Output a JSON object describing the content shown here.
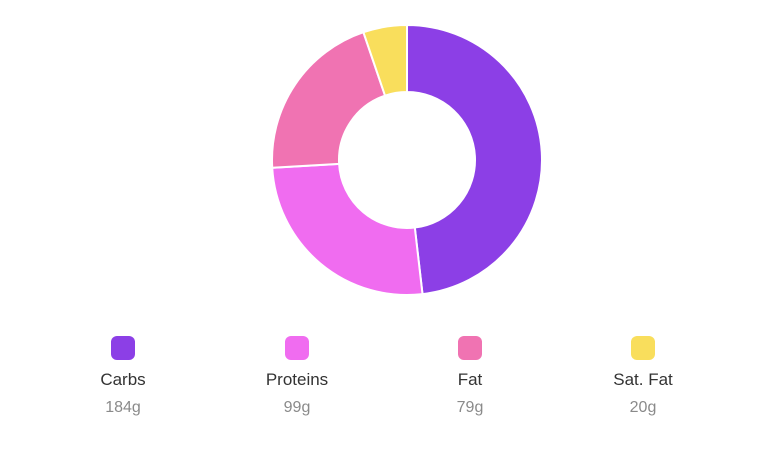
{
  "chart_data": {
    "type": "pie",
    "donut": true,
    "unit": "g",
    "categories": [
      "Carbs",
      "Proteins",
      "Fat",
      "Sat. Fat"
    ],
    "values": [
      184,
      99,
      79,
      20
    ],
    "value_labels": [
      "184g",
      "99g",
      "79g",
      "20g"
    ],
    "colors": [
      "#8c3fe6",
      "#f06cf0",
      "#f073b2",
      "#f9de5c"
    ],
    "legend_position": "bottom"
  }
}
